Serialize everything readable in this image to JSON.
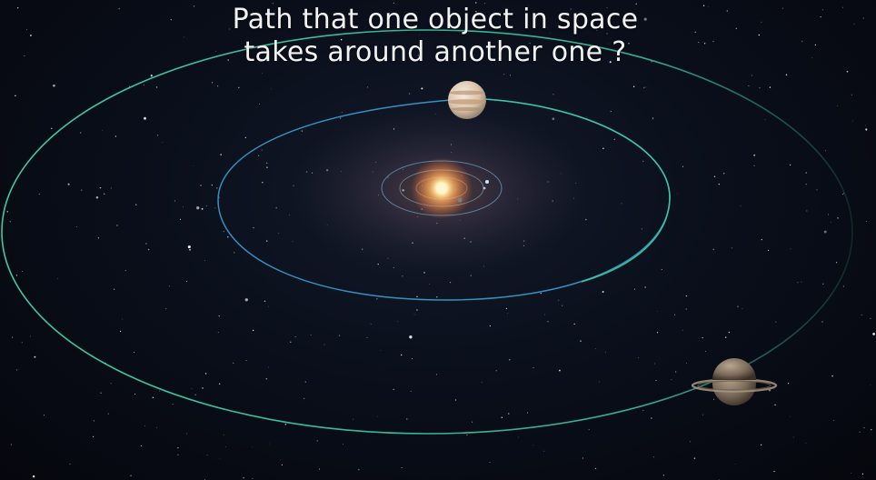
{
  "caption": {
    "line1": "Path that one object in space",
    "line2": "takes around another one ?"
  },
  "scene": {
    "objects": [
      "sun",
      "inner-planets",
      "jupiter",
      "saturn",
      "starfield",
      "orbit-paths"
    ],
    "colors": {
      "outer_orbit": "#3fc9a0",
      "middle_orbit": "#3a9fd0",
      "inner_orbit": "#6fa8c8",
      "sun_core": "#fff6d0",
      "sun_glow": "#ffb060"
    }
  }
}
